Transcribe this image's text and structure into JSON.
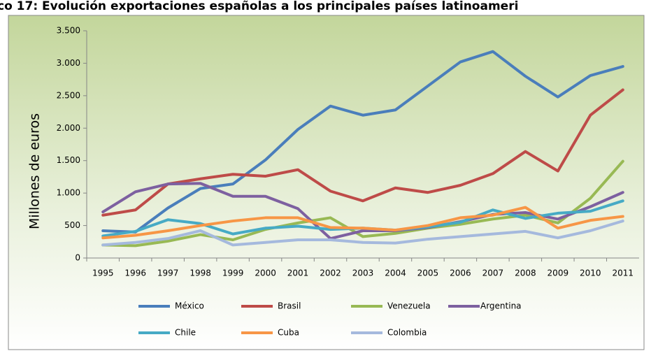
{
  "chart_data": {
    "type": "line",
    "title": "co 17: Evolución exportaciones españolas a los principales países latinoameri",
    "y_label": "Millones de euros",
    "categories": [
      "1995",
      "1996",
      "1997",
      "1998",
      "1999",
      "2000",
      "2001",
      "2002",
      "2003",
      "2004",
      "2005",
      "2006",
      "2007",
      "2008",
      "2009",
      "2010",
      "2011"
    ],
    "series": [
      {
        "name": "México",
        "color": "#4a7ebb",
        "values": [
          420,
          400,
          770,
          1070,
          1140,
          1510,
          1980,
          2340,
          2200,
          2280,
          2650,
          3020,
          3180,
          2800,
          2480,
          2810,
          2950
        ]
      },
      {
        "name": "Brasil",
        "color": "#be4b48",
        "values": [
          660,
          740,
          1140,
          1220,
          1290,
          1260,
          1360,
          1030,
          880,
          1080,
          1010,
          1120,
          1300,
          1640,
          1340,
          2200,
          2590
        ]
      },
      {
        "name": "Venezuela",
        "color": "#98b954",
        "values": [
          200,
          190,
          260,
          360,
          280,
          440,
          540,
          620,
          330,
          380,
          460,
          520,
          600,
          660,
          540,
          920,
          1490
        ]
      },
      {
        "name": "Argentina",
        "color": "#7d60a0",
        "values": [
          710,
          1020,
          1140,
          1150,
          950,
          950,
          760,
          300,
          420,
          420,
          470,
          560,
          670,
          700,
          600,
          790,
          1010
        ]
      },
      {
        "name": "Chile",
        "color": "#46aac5",
        "values": [
          340,
          410,
          590,
          530,
          370,
          460,
          490,
          440,
          460,
          430,
          480,
          550,
          740,
          610,
          690,
          720,
          880
        ]
      },
      {
        "name": "Cuba",
        "color": "#f79646",
        "values": [
          310,
          350,
          420,
          500,
          570,
          620,
          620,
          470,
          460,
          430,
          500,
          620,
          660,
          780,
          460,
          580,
          640
        ]
      },
      {
        "name": "Colombia",
        "color": "#a5b9dd",
        "values": [
          200,
          240,
          300,
          420,
          200,
          240,
          280,
          280,
          240,
          230,
          290,
          330,
          370,
          410,
          310,
          420,
          570
        ]
      }
    ],
    "ylim": [
      0,
      3500
    ],
    "yticks": [
      0,
      500,
      {
        "value": 1000,
        "label": "1.000"
      },
      {
        "value": 1500,
        "label": "1.500"
      },
      {
        "value": 2000,
        "label": "2.000"
      },
      {
        "value": 2500,
        "label": "2.500"
      },
      {
        "value": 3000,
        "label": "3.000"
      },
      {
        "value": 3500,
        "label": "3.500"
      }
    ],
    "grid": false
  }
}
